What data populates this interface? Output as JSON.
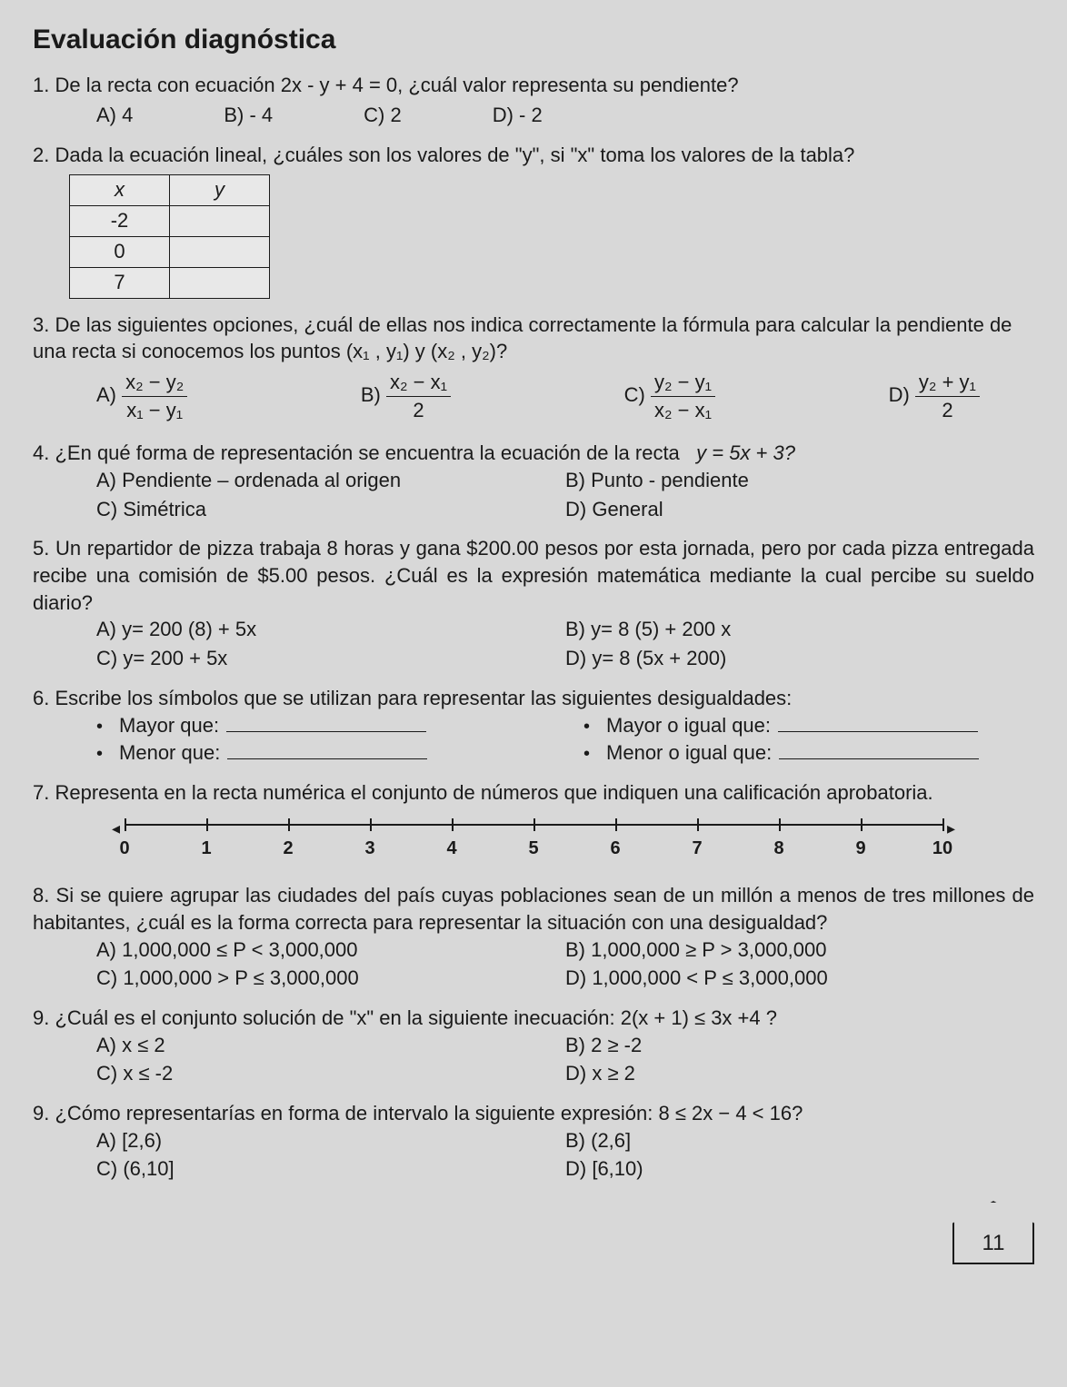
{
  "title": "Evaluación diagnóstica",
  "q1": {
    "num": "1.",
    "text": "De la recta con ecuación 2x - y + 4 = 0, ¿cuál valor representa su pendiente?",
    "A": "A) 4",
    "B": "B) - 4",
    "C": "C) 2",
    "D": "D) - 2"
  },
  "q2": {
    "num": "2.",
    "text": "Dada la ecuación lineal, ¿cuáles son los valores de \"y\", si \"x\" toma los valores de la tabla?",
    "table": {
      "head_x": "x",
      "head_y": "y",
      "rows": [
        "-2",
        "0",
        "7"
      ]
    }
  },
  "q3": {
    "num": "3.",
    "text": "De las siguientes opciones, ¿cuál de ellas nos indica correctamente la fórmula para calcular la pendiente de una recta si conocemos los puntos  (x₁ , y₁) y (x₂ , y₂)?",
    "A": {
      "label": "A)",
      "num": "x₂ − y₂",
      "den": "x₁ − y₁"
    },
    "B": {
      "label": "B)",
      "num": "x₂ − x₁",
      "den": "2"
    },
    "C": {
      "label": "C)",
      "num": "y₂ − y₁",
      "den": "x₂ − x₁"
    },
    "D": {
      "label": "D)",
      "num": "y₂ + y₁",
      "den": "2"
    }
  },
  "q4": {
    "num": "4.",
    "text": "¿En qué forma de representación se encuentra la ecuación de la recta",
    "eq": "y = 5x + 3?",
    "A": "A) Pendiente – ordenada al origen",
    "B": "B) Punto - pendiente",
    "C": "C) Simétrica",
    "D": "D) General"
  },
  "q5": {
    "num": "5.",
    "text": "Un repartidor de pizza trabaja 8 horas y gana $200.00 pesos por esta jornada, pero por cada pizza entregada recibe una comisión de $5.00 pesos. ¿Cuál es la expresión matemática mediante la cual percibe su sueldo diario?",
    "A": "A) y= 200 (8) + 5x",
    "B": "B) y= 8 (5) + 200 x",
    "C": "C) y= 200 + 5x",
    "D": "D) y= 8 (5x + 200)"
  },
  "q6": {
    "num": "6.",
    "text": "Escribe los símbolos que se utilizan para representar las siguientes desigualdades:",
    "a": "Mayor que:",
    "b": "Mayor o igual que:",
    "c": "Menor que:",
    "d": "Menor o igual que:"
  },
  "q7": {
    "num": "7.",
    "text": "Representa en la recta numérica el conjunto de números que indiquen una calificación aprobatoria.",
    "ticks": [
      "0",
      "1",
      "2",
      "3",
      "4",
      "5",
      "6",
      "7",
      "8",
      "9",
      "10"
    ]
  },
  "q8": {
    "num": "8.",
    "text": "Si se quiere agrupar las ciudades del país cuyas poblaciones sean de un millón a menos de tres millones de habitantes, ¿cuál es la forma correcta para representar la situación con una desigualdad?",
    "A": "A) 1,000,000 ≤ P < 3,000,000",
    "B": "B) 1,000,000 ≥ P > 3,000,000",
    "C": "C) 1,000,000 > P ≤ 3,000,000",
    "D": "D) 1,000,000 < P ≤ 3,000,000"
  },
  "q9": {
    "num": "9.",
    "text": "¿Cuál es el conjunto solución de \"x\" en la siguiente inecuación: 2(x + 1) ≤ 3x +4 ?",
    "A": "A) x ≤ 2",
    "B": "B) 2 ≥ -2",
    "C": "C) x ≤ -2",
    "D": "D) x ≥ 2"
  },
  "q10": {
    "num": "9.",
    "text": "¿Cómo representarías en forma de intervalo la siguiente expresión: 8 ≤ 2x − 4 < 16?",
    "A": "A) [2,6)",
    "B": "B) (2,6]",
    "C": "C) (6,10]",
    "D": "D) [6,10)"
  },
  "page": "11"
}
